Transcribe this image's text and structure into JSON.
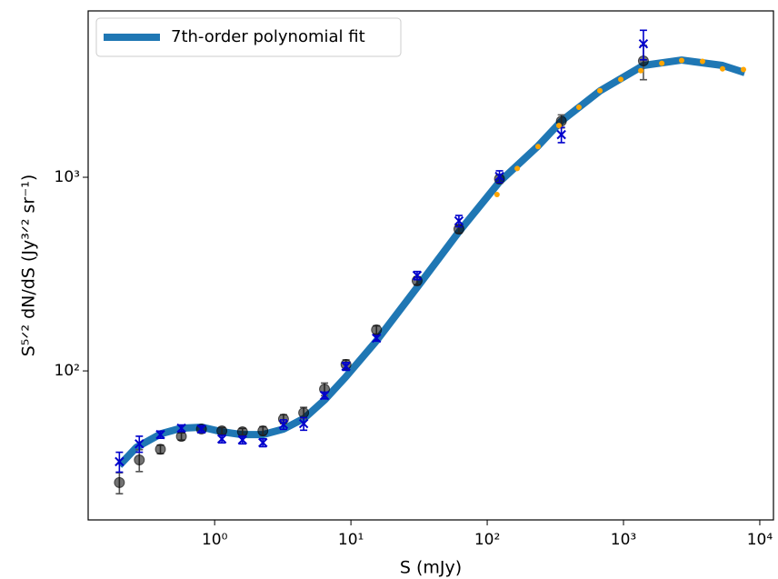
{
  "chart_data": {
    "type": "scatter",
    "xlabel": "S (mJy)",
    "ylabel": "S⁵ᐟ² dN/dS (Jy³ᐟ² sr⁻¹)",
    "xscale": "log",
    "yscale": "log",
    "xlim": [
      0.118,
      12600
    ],
    "ylim": [
      17,
      7230
    ],
    "xticks": [
      {
        "value": 1,
        "label": "10⁰"
      },
      {
        "value": 10,
        "label": "10¹"
      },
      {
        "value": 100,
        "label": "10²"
      },
      {
        "value": 1000,
        "label": "10³"
      },
      {
        "value": 10000,
        "label": "10⁴"
      }
    ],
    "yticks": [
      {
        "value": 100,
        "label": "10²"
      },
      {
        "value": 1000,
        "label": "10³"
      }
    ],
    "legend": "upper left",
    "series": [
      {
        "name": "7th-order polynomial fit",
        "style": "line",
        "color": "#1f77b4",
        "x": [
          0.2,
          0.267,
          0.405,
          0.566,
          0.807,
          1.13,
          1.58,
          2.26,
          3.21,
          4.57,
          6.41,
          9.12,
          15.4,
          30.6,
          62,
          123,
          236,
          350,
          671,
          1400,
          2670,
          5330,
          7760
        ],
        "values": [
          32.5,
          40.3,
          47.4,
          50.6,
          51.2,
          48.5,
          46.9,
          46.9,
          50.1,
          57.1,
          70.8,
          92.7,
          143,
          270,
          523,
          947,
          1450,
          1950,
          2790,
          3780,
          4030,
          3780,
          3470
        ]
      },
      {
        "style": "errorbar-circle",
        "color": "#555555",
        "x": [
          0.2,
          0.28,
          0.4,
          0.57,
          0.8,
          1.13,
          1.6,
          2.26,
          3.2,
          4.5,
          6.4,
          9.2,
          15.4,
          30.6,
          62,
          123,
          350,
          1400
        ],
        "values": [
          26.5,
          34.7,
          39.4,
          45.9,
          50.1,
          49,
          48.5,
          49,
          56.4,
          60.8,
          80.5,
          108,
          163,
          292,
          540,
          980,
          1950,
          3990
        ],
        "errors": [
          3.3,
          4.5,
          2,
          2,
          2,
          2,
          2,
          2.5,
          3,
          4,
          6,
          6,
          8,
          14,
          25,
          50,
          150,
          800
        ]
      },
      {
        "style": "errorbar-x",
        "color": "#0000cc",
        "x": [
          0.2,
          0.28,
          0.4,
          0.57,
          0.8,
          1.13,
          1.6,
          2.26,
          3.2,
          4.5,
          6.4,
          9.2,
          15.4,
          30.6,
          62,
          123,
          350,
          1400
        ],
        "values": [
          34,
          42,
          46.9,
          50.6,
          50.1,
          44.5,
          44,
          42.6,
          52.9,
          53.4,
          74.7,
          105.6,
          147.5,
          311,
          595,
          1010,
          1660,
          4890
        ],
        "errors": [
          4,
          4,
          2,
          2,
          2,
          2,
          2,
          2,
          3,
          4,
          3,
          5,
          5,
          15,
          40,
          70,
          150,
          850
        ]
      },
      {
        "style": "dots",
        "color": "#ffa500",
        "x": [
          118,
          166,
          236,
          336,
          471,
          671,
          955,
          1340,
          1910,
          2670,
          3800,
          5330,
          7590
        ],
        "values": [
          815,
          1110,
          1440,
          1850,
          2300,
          2800,
          3200,
          3550,
          3880,
          4010,
          3970,
          3630,
          3600
        ]
      }
    ]
  }
}
